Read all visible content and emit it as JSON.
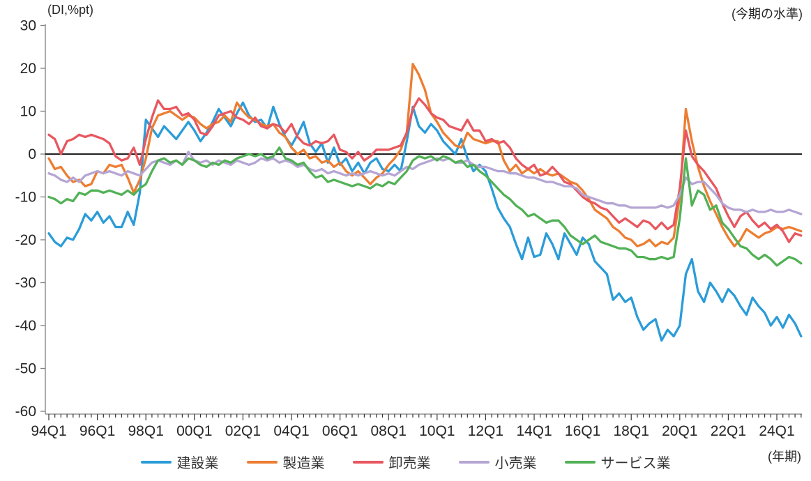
{
  "page": {
    "background": "#ffffff"
  },
  "header": {
    "y_axis_unit_label": "(DI,%pt)",
    "right_label": "(今期の水準)"
  },
  "footer": {
    "x_axis_unit_label": "(年期)"
  },
  "chart_data": {
    "type": "line",
    "title": "",
    "ylabel": "(DI,%pt)",
    "xlabel": "(年期)",
    "annotation_top_right": "(今期の水準)",
    "ylim": [
      -60,
      30
    ],
    "y_ticks": [
      30,
      20,
      10,
      0,
      -10,
      -20,
      -30,
      -40,
      -50,
      -60
    ],
    "x_start": "1994Q1",
    "x_end": "2025Q1",
    "x_freq": "quarterly",
    "n_points": 125,
    "x_tick_every_n_quarters": 8,
    "x_tick_labels": [
      "94Q1",
      "96Q1",
      "98Q1",
      "00Q1",
      "02Q1",
      "04Q1",
      "06Q1",
      "08Q1",
      "10Q1",
      "12Q1",
      "14Q1",
      "16Q1",
      "18Q1",
      "20Q1",
      "22Q1",
      "24Q1"
    ],
    "grid": false,
    "zero_line": true,
    "legend_position": "bottom",
    "axis_color": "#808080",
    "tick_label_color": "#262626",
    "series": [
      {
        "name": "建設業",
        "color": "#2B9CD8",
        "values": [
          -18.5,
          -20.5,
          -21.5,
          -19.5,
          -20,
          -17.5,
          -14,
          -15.5,
          -13.5,
          -16,
          -14.5,
          -17,
          -17,
          -13.5,
          -16.5,
          -9,
          8,
          6,
          4,
          6.5,
          5,
          3.5,
          5.5,
          7.5,
          5.5,
          3,
          5,
          7.5,
          10.5,
          8.5,
          6.5,
          9.5,
          12,
          9,
          7.5,
          8,
          6,
          11,
          7,
          4,
          2,
          4.5,
          7.5,
          2.5,
          0.5,
          2.5,
          -2,
          1.5,
          -2.5,
          -1,
          -4,
          -2,
          -4.5,
          -2,
          -1,
          -3.5,
          -4,
          -2.5,
          -4,
          3,
          11,
          6.5,
          5,
          7,
          5.5,
          3,
          1.5,
          0,
          3.5,
          -1,
          -4,
          -2.5,
          -4,
          -8,
          -12.5,
          -15,
          -17,
          -21,
          -24.5,
          -19.5,
          -24,
          -23.5,
          -18.5,
          -21,
          -24.5,
          -18.5,
          -21,
          -23.5,
          -19.5,
          -21,
          -25,
          -26.5,
          -28,
          -34,
          -32.5,
          -34.5,
          -33.5,
          -38,
          -41,
          -39.5,
          -38.5,
          -43.5,
          -41,
          -42.5,
          -40,
          -28,
          -24.5,
          -32,
          -34.5,
          -30,
          -32,
          -34.5,
          -31.5,
          -33,
          -35.5,
          -37.5,
          -33.5,
          -35.5,
          -37,
          -40,
          -38,
          -40.5,
          -37.5,
          -39.5,
          -42.5
        ]
      },
      {
        "name": "製造業",
        "color": "#ED7D31",
        "values": [
          -1,
          -3.5,
          -3,
          -5,
          -6.5,
          -6,
          -7.5,
          -7,
          -4,
          -4.5,
          -2.5,
          -3,
          -2.5,
          -5.5,
          -9,
          -6,
          -1,
          6,
          9,
          9.5,
          10,
          9,
          8,
          9,
          8.5,
          7,
          6,
          7,
          7.5,
          9,
          7.5,
          12,
          10,
          8.5,
          8,
          7,
          6.5,
          7,
          5,
          4,
          1.5,
          0,
          1,
          -1,
          -0.5,
          -2,
          -1.5,
          -3,
          -2,
          -4,
          -5,
          -4,
          -5.5,
          -7,
          -5.5,
          -4.5,
          -2.5,
          -1,
          1,
          5,
          21,
          18.5,
          15,
          9.5,
          7.5,
          5,
          3.5,
          2,
          1.5,
          5,
          3.5,
          3,
          2.5,
          3,
          3,
          -1.5,
          -4,
          -2.5,
          -4.5,
          -3.5,
          -4.5,
          -3.5,
          -4.5,
          -5,
          -4.5,
          -5.5,
          -6.5,
          -7,
          -8.5,
          -10.5,
          -13,
          -14,
          -15,
          -17,
          -18,
          -19.5,
          -20,
          -21.5,
          -21,
          -20,
          -21.5,
          -20.5,
          -21,
          -19.5,
          -10,
          10.5,
          3,
          -3,
          -7.5,
          -11,
          -14,
          -17,
          -19.5,
          -21.5,
          -20,
          -17.5,
          -18.5,
          -19.5,
          -18.5,
          -18,
          -17,
          -17.5,
          -17,
          -17.5,
          -18
        ]
      },
      {
        "name": "卸売業",
        "color": "#E8575F",
        "values": [
          4.5,
          3.5,
          0,
          3,
          3.5,
          4.5,
          4,
          4.5,
          4,
          3.5,
          2.5,
          -0.5,
          -1.5,
          -1,
          1.5,
          -2.5,
          3.5,
          8.5,
          12.5,
          10.5,
          10.5,
          11,
          9,
          9.5,
          8,
          5,
          4.5,
          6.5,
          9,
          9.5,
          10,
          8.5,
          8,
          7,
          8.5,
          6.5,
          6,
          7,
          6.5,
          5,
          7,
          4,
          2.5,
          2,
          3,
          2.5,
          3,
          4.5,
          1,
          0.5,
          -1,
          0.5,
          -1.5,
          -0.5,
          1,
          1,
          1,
          1.5,
          2,
          5,
          10.5,
          13,
          11.5,
          9.5,
          8.5,
          8,
          6.5,
          6,
          5.5,
          8,
          5.5,
          5.5,
          3,
          3.5,
          2.5,
          3,
          1.5,
          -1,
          -2.5,
          -3.5,
          -2.5,
          -5,
          -4.5,
          -3,
          -4.5,
          -6.5,
          -7,
          -8.5,
          -10,
          -11,
          -11.5,
          -12.5,
          -13,
          -14.5,
          -16,
          -15,
          -16,
          -17,
          -15.5,
          -16,
          -17.5,
          -16,
          -17.5,
          -16.5,
          -8,
          5.5,
          -0.5,
          -2.5,
          -4,
          -6,
          -8,
          -11.5,
          -14.5,
          -17,
          -14.5,
          -13.5,
          -15.5,
          -17,
          -16,
          -17.5,
          -16.5,
          -18,
          -20.5,
          -18.5,
          -19
        ]
      },
      {
        "name": "小売業",
        "color": "#B5A5D3",
        "values": [
          -4.5,
          -5,
          -6,
          -6.5,
          -5.5,
          -6.5,
          -5,
          -4.5,
          -4,
          -4.5,
          -4,
          -4.5,
          -5,
          -4,
          -4.5,
          -5,
          -3.5,
          -2,
          -1.5,
          -2,
          -2.5,
          -1.5,
          -2.5,
          0.5,
          -1.5,
          -2,
          -1.5,
          -2.5,
          -1.5,
          -2,
          -2.5,
          -1.5,
          -2,
          -2.5,
          -2,
          -1,
          -1.5,
          -1,
          -2,
          -1.5,
          -2,
          -3,
          -2.5,
          -3.5,
          -4,
          -3.5,
          -4.5,
          -4,
          -4.5,
          -5,
          -4.5,
          -5,
          -4.5,
          -4,
          -4.5,
          -5,
          -4.5,
          -5,
          -4,
          -3,
          -3.5,
          -2.5,
          -2,
          -1.5,
          -1,
          -1.5,
          -1,
          -2,
          -2,
          -1.5,
          -2.5,
          -3,
          -3,
          -3.5,
          -4,
          -4,
          -4.5,
          -4.5,
          -5,
          -5.5,
          -5.5,
          -6,
          -6.5,
          -6.5,
          -7,
          -7.5,
          -7.5,
          -8,
          -9.5,
          -10,
          -10.5,
          -11,
          -11.5,
          -11.5,
          -12,
          -12,
          -12.5,
          -12.5,
          -12.5,
          -12.5,
          -12.5,
          -12,
          -12.5,
          -12,
          -9.5,
          -5.5,
          -7,
          -6.5,
          -6.5,
          -8,
          -9.5,
          -11.5,
          -12.5,
          -13,
          -13,
          -13.5,
          -13,
          -13.5,
          -13.5,
          -13,
          -13.5,
          -13.5,
          -13,
          -13.5,
          -14
        ]
      },
      {
        "name": "サービス業",
        "color": "#52B156",
        "values": [
          -10,
          -10.5,
          -11.5,
          -10.5,
          -11,
          -9,
          -9.5,
          -8.5,
          -8.5,
          -9,
          -8.5,
          -9,
          -9.5,
          -8.5,
          -9.5,
          -8,
          -7,
          -4,
          -1.5,
          -1,
          -2,
          -1.5,
          -2.5,
          -1,
          -1.5,
          -2.5,
          -3,
          -2,
          -2.5,
          -1.5,
          -2,
          -1,
          -0.5,
          0,
          -0.5,
          0,
          -1,
          -0.5,
          1.5,
          -1,
          -1.5,
          -2.5,
          -2,
          -4,
          -5.5,
          -5,
          -6.5,
          -6,
          -6.5,
          -7,
          -7.5,
          -7,
          -7.5,
          -8,
          -7,
          -7.5,
          -6.5,
          -7,
          -5.5,
          -4,
          -1.5,
          -0.5,
          -1,
          -0.5,
          -1.5,
          -0.5,
          -1,
          -2,
          -1.5,
          -3,
          -2.5,
          -4,
          -5,
          -6.5,
          -8,
          -9.5,
          -10.5,
          -12,
          -13,
          -14.5,
          -14,
          -15,
          -16,
          -15.5,
          -15.5,
          -17,
          -19,
          -20,
          -21,
          -20,
          -19,
          -20.5,
          -21,
          -21.5,
          -22,
          -22,
          -22.5,
          -24,
          -24,
          -24.5,
          -24.5,
          -24,
          -24.5,
          -24,
          -15,
          -1,
          -12,
          -8.5,
          -9.5,
          -13,
          -12,
          -16,
          -17.5,
          -19.5,
          -21.5,
          -22,
          -23.5,
          -24.5,
          -23.5,
          -24.5,
          -26,
          -25,
          -24,
          -24.5,
          -25.5
        ]
      }
    ]
  }
}
